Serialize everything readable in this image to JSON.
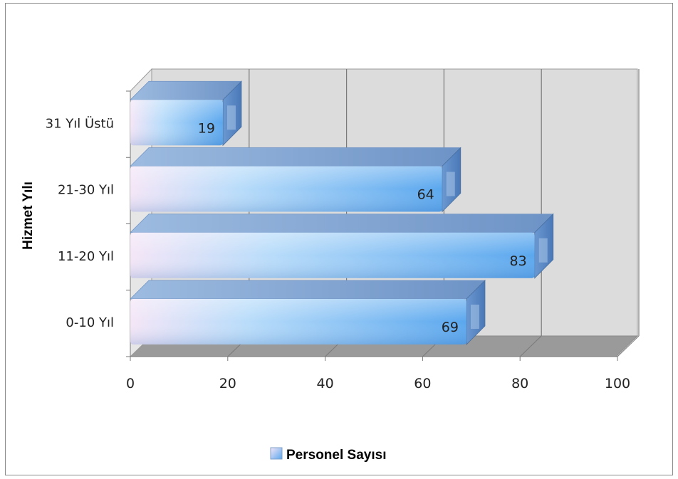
{
  "chart_data": {
    "type": "bar",
    "orientation": "horizontal",
    "style": "3d",
    "categories": [
      "0-10 Yıl",
      "11-20 Yıl",
      "21-30 Yıl",
      "31 Yıl Üstü"
    ],
    "series": [
      {
        "name": "Personel Sayısı",
        "values": [
          69,
          83,
          64,
          19
        ]
      }
    ],
    "xlim": [
      0,
      100
    ],
    "xticks": [
      "0",
      "20",
      "40",
      "60",
      "80",
      "100"
    ],
    "ylabel": "Hizmet Yılı",
    "xlabel": "",
    "grid": true,
    "legend_position": "bottom",
    "colors": {
      "bar_light": "#f4e6f7",
      "bar_mid": "#9fd0f8",
      "bar_dark": "#5aa7ee",
      "bar_top": "#7fa8d8",
      "bar_end": "#4f7fbf",
      "wall": "#dcdcdc",
      "floor": "#9a9a9a",
      "gridline": "#7a7a7a"
    }
  },
  "legend": {
    "label": "Personel Sayısı"
  },
  "axis": {
    "title": "Hizmet Yılı"
  }
}
